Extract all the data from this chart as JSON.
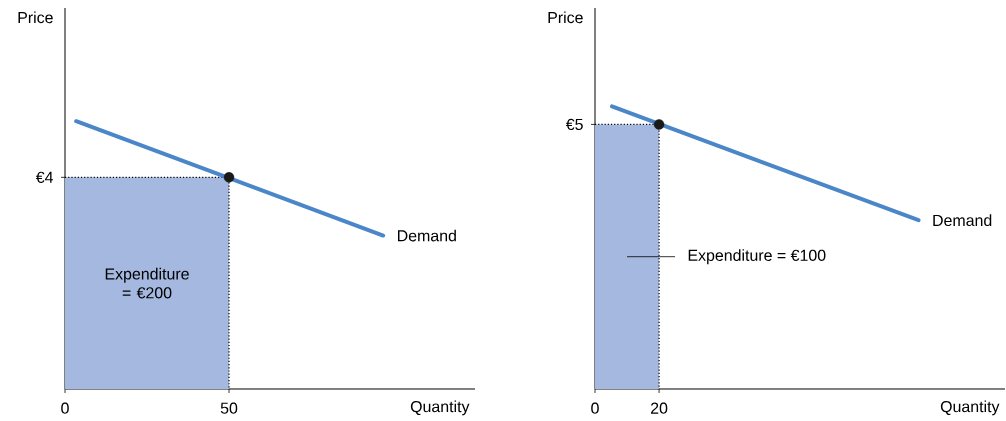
{
  "chart_data": [
    {
      "type": "line",
      "xlabel": "Quantity",
      "ylabel": "Price",
      "xlim": [
        0,
        125
      ],
      "ylim": [
        0,
        7.2
      ],
      "xticks": [
        0,
        50
      ],
      "yticks": [
        {
          "value": 4,
          "label": "€4"
        }
      ],
      "annotations": [
        "Expenditure = €200"
      ],
      "series": [
        {
          "type": "area",
          "color": "#a4b8e0",
          "x": [
            0,
            50
          ],
          "values": [
            4,
            4
          ]
        },
        {
          "name": "Demand",
          "color": "#4a86c8",
          "x": [
            3.4,
            97
          ],
          "values": [
            5.06,
            2.9
          ]
        },
        {
          "type": "scatter",
          "color": "#1a1a1a",
          "x": [
            50
          ],
          "values": [
            4
          ]
        }
      ]
    },
    {
      "type": "line",
      "xlabel": "Quantity",
      "ylabel": "Price",
      "xlim": [
        0,
        128
      ],
      "ylim": [
        0,
        7.2
      ],
      "xticks": [
        0,
        20
      ],
      "yticks": [
        {
          "value": 5,
          "label": "€5"
        }
      ],
      "annotations": [
        "Expenditure = €100"
      ],
      "series": [
        {
          "type": "area",
          "color": "#a4b8e0",
          "x": [
            0,
            20
          ],
          "values": [
            5,
            5
          ]
        },
        {
          "name": "Demand",
          "color": "#4a86c8",
          "x": [
            5.3,
            101
          ],
          "values": [
            5.34,
            3.19
          ]
        },
        {
          "type": "scatter",
          "color": "#1a1a1a",
          "x": [
            20
          ],
          "values": [
            5
          ]
        }
      ]
    }
  ]
}
